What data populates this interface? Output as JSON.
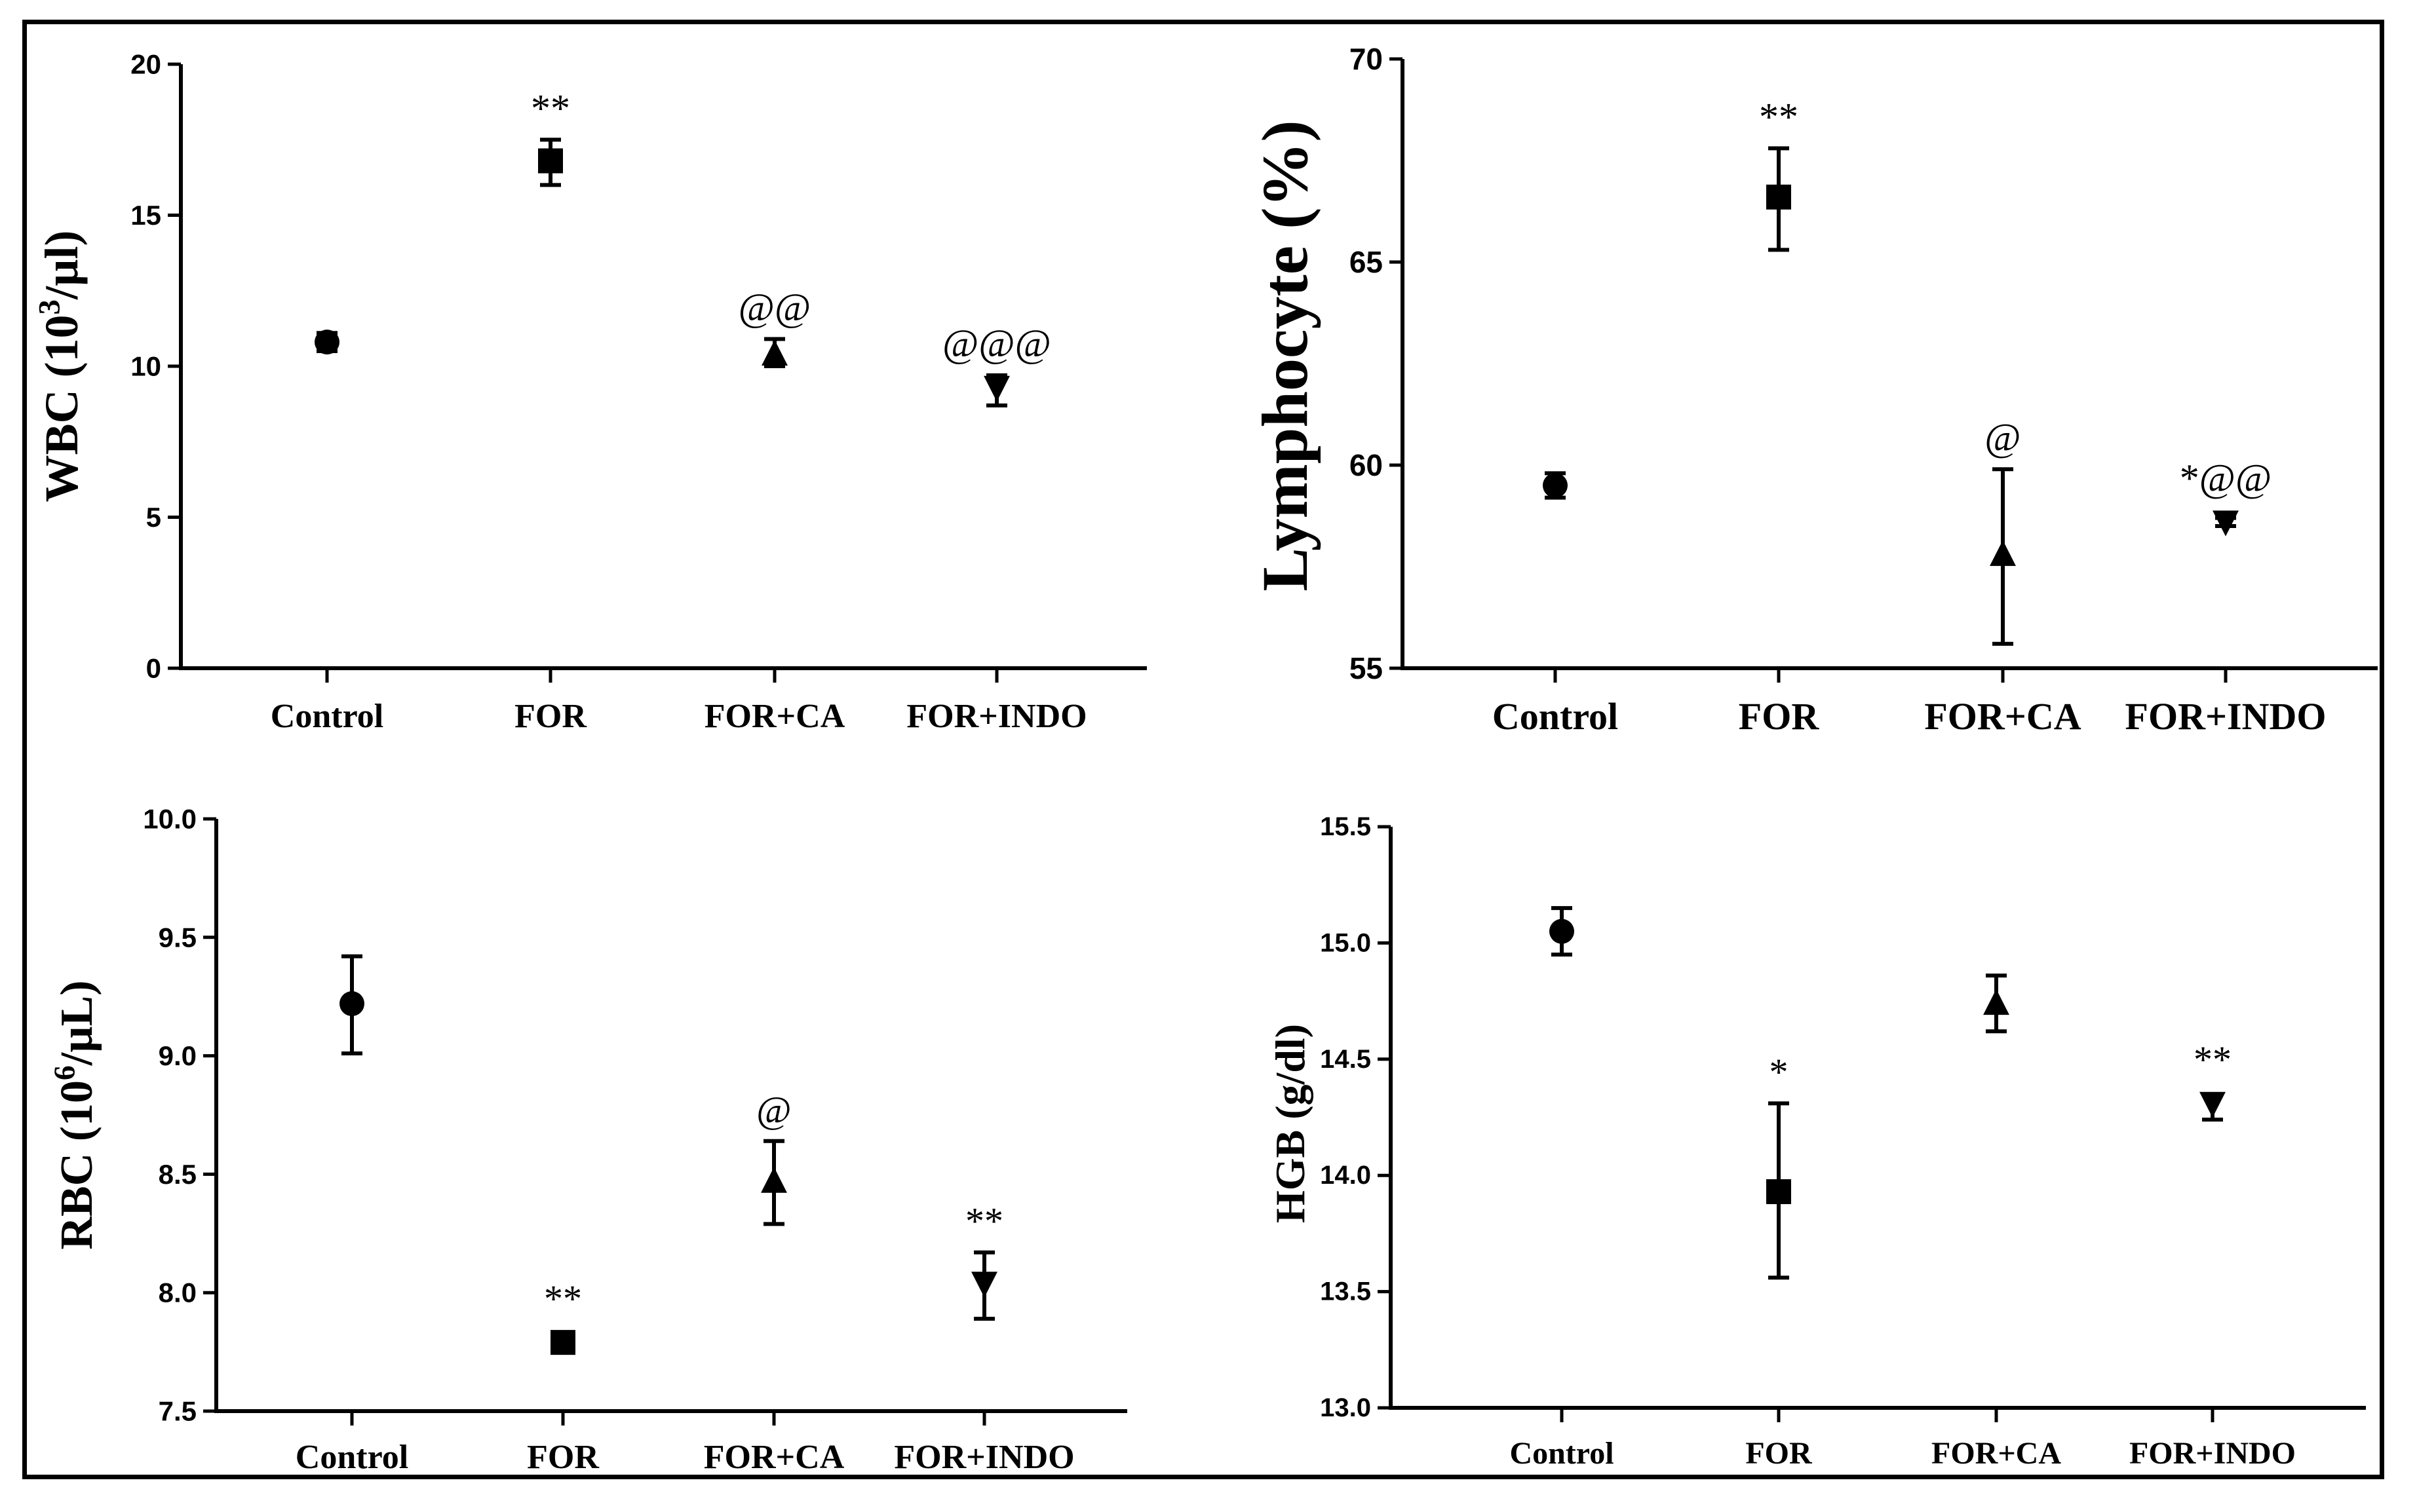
{
  "figure": {
    "color": "#000000"
  },
  "chart_data": [
    {
      "id": "wbc",
      "type": "scatter",
      "ylabel_main": "WBC (10",
      "ylabel_sup": "3",
      "ylabel_tail": "/µl)",
      "categories": [
        "Control",
        "FOR",
        "FOR+CA",
        "FOR+INDO"
      ],
      "markers": [
        "circle",
        "square",
        "triangle-up",
        "triangle-down"
      ],
      "ylim": [
        0,
        20
      ],
      "yticks": [
        "0",
        "5",
        "10",
        "15",
        "20"
      ],
      "ytick_values": [
        0,
        5,
        10,
        15,
        20
      ],
      "mean": [
        10.8,
        16.8,
        10.4,
        9.3
      ],
      "err_low": [
        10.5,
        16.0,
        10.0,
        8.7
      ],
      "err_high": [
        11.1,
        17.5,
        10.9,
        9.7
      ],
      "annotations": [
        "",
        "**",
        "@@",
        "@@@"
      ]
    },
    {
      "id": "lymphocyte",
      "type": "scatter",
      "ylabel_main": "Lymphocyte (%)",
      "ylabel_sup": "",
      "ylabel_tail": "",
      "categories": [
        "Control",
        "FOR",
        "FOR+CA",
        "FOR+INDO"
      ],
      "markers": [
        "circle",
        "square",
        "triangle-up",
        "triangle-down"
      ],
      "ylim": [
        55,
        70
      ],
      "yticks": [
        "55",
        "60",
        "65",
        "70"
      ],
      "ytick_values": [
        55,
        60,
        65,
        70
      ],
      "mean": [
        59.5,
        66.6,
        57.8,
        58.6
      ],
      "err_low": [
        59.2,
        65.3,
        55.6,
        58.5
      ],
      "err_high": [
        59.8,
        67.8,
        59.9,
        58.7
      ],
      "annotations": [
        "",
        "**",
        "@",
        "*@@"
      ]
    },
    {
      "id": "rbc",
      "type": "scatter",
      "ylabel_main": "RBC (10",
      "ylabel_sup": "6",
      "ylabel_tail": "/µL)",
      "categories": [
        "Control",
        "FOR",
        "FOR+CA",
        "FOR+INDO"
      ],
      "markers": [
        "circle",
        "square",
        "triangle-up",
        "triangle-down"
      ],
      "ylim": [
        7.5,
        10.0
      ],
      "yticks": [
        "7.5",
        "8.0",
        "8.5",
        "9.0",
        "9.5",
        "10.0"
      ],
      "ytick_values": [
        7.5,
        8.0,
        8.5,
        9.0,
        9.5,
        10.0
      ],
      "mean": [
        9.22,
        7.79,
        8.47,
        8.04
      ],
      "err_low": [
        9.01,
        7.75,
        8.29,
        7.89
      ],
      "err_high": [
        9.42,
        7.83,
        8.64,
        8.17
      ],
      "annotations": [
        "",
        "**",
        "@",
        "**"
      ]
    },
    {
      "id": "hgb",
      "type": "scatter",
      "ylabel_main": "HGB (g/dl)",
      "ylabel_sup": "",
      "ylabel_tail": "",
      "categories": [
        "Control",
        "FOR",
        "FOR+CA",
        "FOR+INDO"
      ],
      "markers": [
        "circle",
        "square",
        "triangle-up",
        "triangle-down"
      ],
      "ylim": [
        13.0,
        15.5
      ],
      "yticks": [
        "13.0",
        "13.5",
        "14.0",
        "14.5",
        "15.0",
        "15.5"
      ],
      "ytick_values": [
        13.0,
        13.5,
        14.0,
        14.5,
        15.0,
        15.5
      ],
      "mean": [
        15.05,
        13.93,
        14.74,
        14.31
      ],
      "err_low": [
        14.95,
        13.56,
        14.62,
        14.24
      ],
      "err_high": [
        15.15,
        14.31,
        14.86,
        14.35
      ],
      "annotations": [
        "",
        "*",
        "",
        "**"
      ]
    }
  ]
}
